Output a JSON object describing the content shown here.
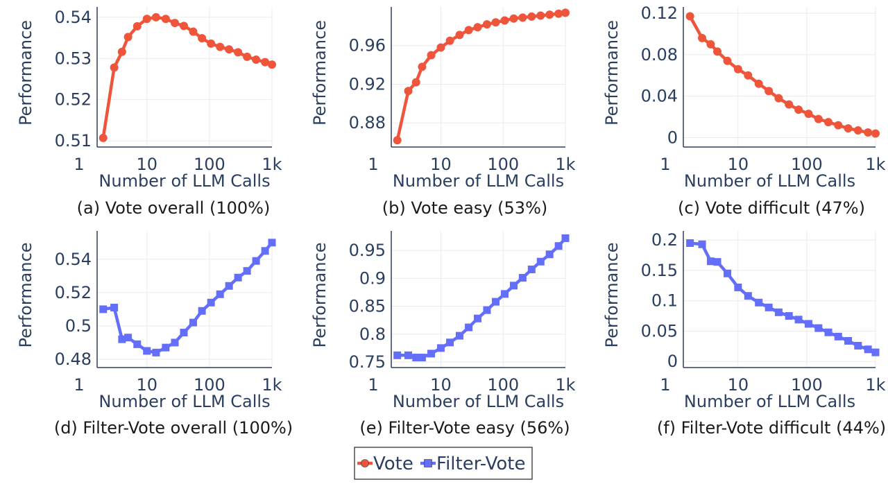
{
  "colors": {
    "vote": "#ef553b",
    "filter_vote": "#636efa",
    "grid": "#ebebeb",
    "axis_text": "#2a3f5f"
  },
  "legend": {
    "items": [
      {
        "label": "Vote",
        "series": "vote"
      },
      {
        "label": "Filter-Vote",
        "series": "filter_vote"
      }
    ]
  },
  "chart_data": [
    {
      "type": "line",
      "series_key": "vote",
      "caption": "(a) Vote overall (100%)",
      "xlabel": "Number of LLM Calls",
      "ylabel": "Performance",
      "xscale": "log",
      "xlim": [
        1.6,
        1000
      ],
      "xticks": [
        1,
        10,
        100,
        1000
      ],
      "xticklabels": [
        "1",
        "10",
        "100",
        "1k"
      ],
      "ylim": [
        0.5085,
        0.5425
      ],
      "yticks": [
        0.51,
        0.52,
        0.53,
        0.54
      ],
      "yticklabels": [
        "0.51",
        "0.52",
        "0.53",
        "0.54"
      ],
      "series": [
        {
          "name": "Vote",
          "x": [
            2,
            3,
            4,
            5,
            7,
            10,
            14,
            20,
            28,
            39,
            55,
            76,
            106,
            148,
            206,
            287,
            400,
            557,
            777,
            1000
          ],
          "y": [
            0.5107,
            0.5278,
            0.5316,
            0.5352,
            0.5378,
            0.5396,
            0.54,
            0.5396,
            0.5386,
            0.5379,
            0.5365,
            0.5349,
            0.5336,
            0.5328,
            0.5322,
            0.5315,
            0.5304,
            0.5297,
            0.5291,
            0.5285
          ]
        }
      ]
    },
    {
      "type": "line",
      "series_key": "vote",
      "caption": "(b) Vote easy (53%)",
      "xlabel": "Number of LLM Calls",
      "ylabel": "Performance",
      "xscale": "log",
      "xlim": [
        1.6,
        1000
      ],
      "xticks": [
        1,
        10,
        100,
        1000
      ],
      "xticklabels": [
        "1",
        "10",
        "100",
        "1k"
      ],
      "ylim": [
        0.855,
        1.0
      ],
      "yticks": [
        0.88,
        0.92,
        0.96
      ],
      "yticklabels": [
        "0.88",
        "0.92",
        "0.96"
      ],
      "series": [
        {
          "name": "Vote",
          "x": [
            2,
            3,
            4,
            5,
            7,
            10,
            14,
            20,
            28,
            39,
            55,
            76,
            106,
            148,
            206,
            287,
            400,
            557,
            777,
            1000
          ],
          "y": [
            0.862,
            0.913,
            0.922,
            0.938,
            0.95,
            0.958,
            0.965,
            0.971,
            0.976,
            0.979,
            0.982,
            0.984,
            0.986,
            0.988,
            0.989,
            0.99,
            0.991,
            0.992,
            0.993,
            0.994
          ]
        }
      ]
    },
    {
      "type": "line",
      "series_key": "vote",
      "caption": "(c) Vote difficult (47%)",
      "xlabel": "Number of LLM Calls",
      "ylabel": "Performance",
      "xscale": "log",
      "xlim": [
        1.6,
        1000
      ],
      "xticks": [
        1,
        10,
        100,
        1000
      ],
      "xticklabels": [
        "1",
        "10",
        "100",
        "1k"
      ],
      "ylim": [
        -0.009,
        0.126
      ],
      "yticks": [
        0,
        0.04,
        0.08,
        0.12
      ],
      "yticklabels": [
        "0",
        "0.04",
        "0.08",
        "0.12"
      ],
      "series": [
        {
          "name": "Vote",
          "x": [
            2,
            3,
            4,
            5,
            7,
            10,
            14,
            20,
            28,
            39,
            55,
            76,
            106,
            148,
            206,
            287,
            400,
            557,
            777,
            1000
          ],
          "y": [
            0.117,
            0.096,
            0.09,
            0.083,
            0.074,
            0.066,
            0.06,
            0.052,
            0.045,
            0.038,
            0.032,
            0.027,
            0.023,
            0.018,
            0.015,
            0.012,
            0.009,
            0.007,
            0.005,
            0.004
          ]
        }
      ]
    },
    {
      "type": "line",
      "series_key": "filter_vote",
      "caption": "(d) Filter-Vote overall (100%)",
      "xlabel": "Number of LLM Calls",
      "ylabel": "Performance",
      "xscale": "log",
      "xlim": [
        1.6,
        1000
      ],
      "xticks": [
        1,
        10,
        100,
        1000
      ],
      "xticklabels": [
        "1",
        "10",
        "100",
        "1k"
      ],
      "ylim": [
        0.475,
        0.557
      ],
      "yticks": [
        0.48,
        0.5,
        0.52,
        0.54
      ],
      "yticklabels": [
        "0.48",
        "0.5",
        "0.52",
        "0.54"
      ],
      "series": [
        {
          "name": "Filter-Vote",
          "x": [
            2,
            3,
            4,
            5,
            7,
            10,
            14,
            20,
            28,
            39,
            55,
            76,
            106,
            148,
            206,
            287,
            400,
            557,
            777,
            1000
          ],
          "y": [
            0.51,
            0.511,
            0.492,
            0.493,
            0.489,
            0.485,
            0.484,
            0.487,
            0.49,
            0.496,
            0.502,
            0.509,
            0.514,
            0.519,
            0.524,
            0.529,
            0.533,
            0.539,
            0.545,
            0.55
          ]
        }
      ]
    },
    {
      "type": "line",
      "series_key": "filter_vote",
      "caption": "(e) Filter-Vote easy (56%)",
      "xlabel": "Number of LLM Calls",
      "ylabel": "Performance",
      "xscale": "log",
      "xlim": [
        1.6,
        1000
      ],
      "xticks": [
        1,
        10,
        100,
        1000
      ],
      "xticklabels": [
        "1",
        "10",
        "100",
        "1k"
      ],
      "ylim": [
        0.74,
        0.985
      ],
      "yticks": [
        0.75,
        0.8,
        0.85,
        0.9,
        0.95
      ],
      "yticklabels": [
        "0.75",
        "0.8",
        "0.85",
        "0.9",
        "0.95"
      ],
      "series": [
        {
          "name": "Filter-Vote",
          "x": [
            2,
            3,
            4,
            5,
            7,
            10,
            14,
            20,
            28,
            39,
            55,
            76,
            106,
            148,
            206,
            287,
            400,
            557,
            777,
            1000
          ],
          "y": [
            0.762,
            0.762,
            0.758,
            0.758,
            0.765,
            0.775,
            0.785,
            0.797,
            0.812,
            0.828,
            0.843,
            0.858,
            0.872,
            0.887,
            0.901,
            0.916,
            0.93,
            0.943,
            0.958,
            0.972
          ]
        }
      ]
    },
    {
      "type": "line",
      "series_key": "filter_vote",
      "caption": "(f) Filter-Vote difficult (44%)",
      "xlabel": "Number of LLM Calls",
      "ylabel": "Performance",
      "xscale": "log",
      "xlim": [
        1.6,
        1000
      ],
      "xticks": [
        1,
        10,
        100,
        1000
      ],
      "xticklabels": [
        "1",
        "10",
        "100",
        "1k"
      ],
      "ylim": [
        -0.01,
        0.215
      ],
      "yticks": [
        0,
        0.05,
        0.1,
        0.15,
        0.2
      ],
      "yticklabels": [
        "0",
        "0.05",
        "0.1",
        "0.15",
        "0.2"
      ],
      "series": [
        {
          "name": "Filter-Vote",
          "x": [
            2,
            3,
            4,
            5,
            7,
            10,
            14,
            20,
            28,
            39,
            55,
            76,
            106,
            148,
            206,
            287,
            400,
            557,
            777,
            1000
          ],
          "y": [
            0.195,
            0.193,
            0.165,
            0.164,
            0.145,
            0.122,
            0.108,
            0.097,
            0.089,
            0.081,
            0.075,
            0.069,
            0.062,
            0.055,
            0.048,
            0.041,
            0.034,
            0.026,
            0.02,
            0.015
          ]
        }
      ]
    }
  ]
}
